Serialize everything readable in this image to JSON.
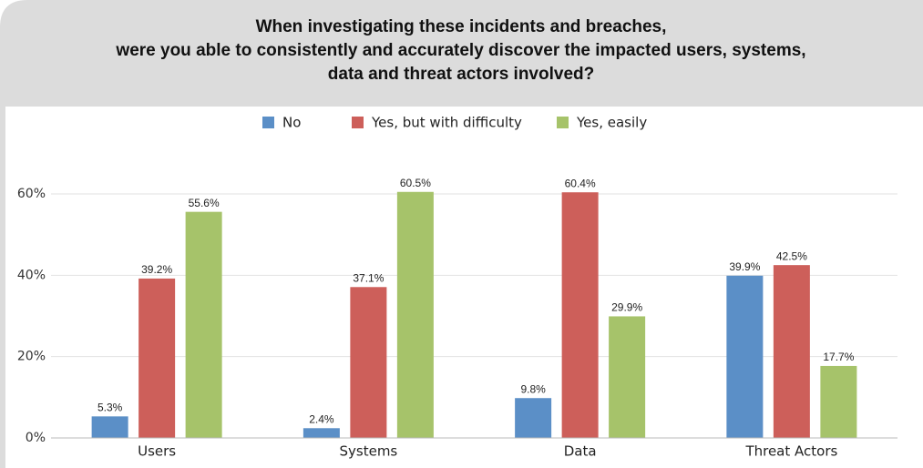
{
  "chart_data": {
    "type": "bar",
    "title": [
      "When investigating these incidents and breaches,",
      "were you able to consistently and accurately discover the impacted users, systems,",
      "data and threat actors involved?"
    ],
    "categories": [
      "Users",
      "Systems",
      "Data",
      "Threat Actors"
    ],
    "series": [
      {
        "name": "No",
        "color": "#5b8fc7",
        "values": [
          5.3,
          2.4,
          9.8,
          39.9
        ],
        "value_labels": [
          "5.3%",
          "2.4%",
          "9.8%",
          "39.9%"
        ]
      },
      {
        "name": "Yes, but with difficulty",
        "color": "#cd5f5a",
        "values": [
          39.2,
          37.1,
          60.4,
          42.5
        ],
        "value_labels": [
          "39.2%",
          "37.1%",
          "60.4%",
          "42.5%"
        ]
      },
      {
        "name": "Yes, easily",
        "color": "#a6c36a",
        "values": [
          55.6,
          60.5,
          29.9,
          17.7
        ],
        "value_labels": [
          "55.6%",
          "60.5%",
          "29.9%",
          "17.7%"
        ]
      }
    ],
    "ylim": [
      0,
      80
    ],
    "yticks": [
      {
        "value": 0,
        "label": "0%"
      },
      {
        "value": 20,
        "label": "20%"
      },
      {
        "value": 40,
        "label": "40%"
      },
      {
        "value": 60,
        "label": "60%"
      }
    ],
    "grid": true,
    "legend": "top"
  }
}
